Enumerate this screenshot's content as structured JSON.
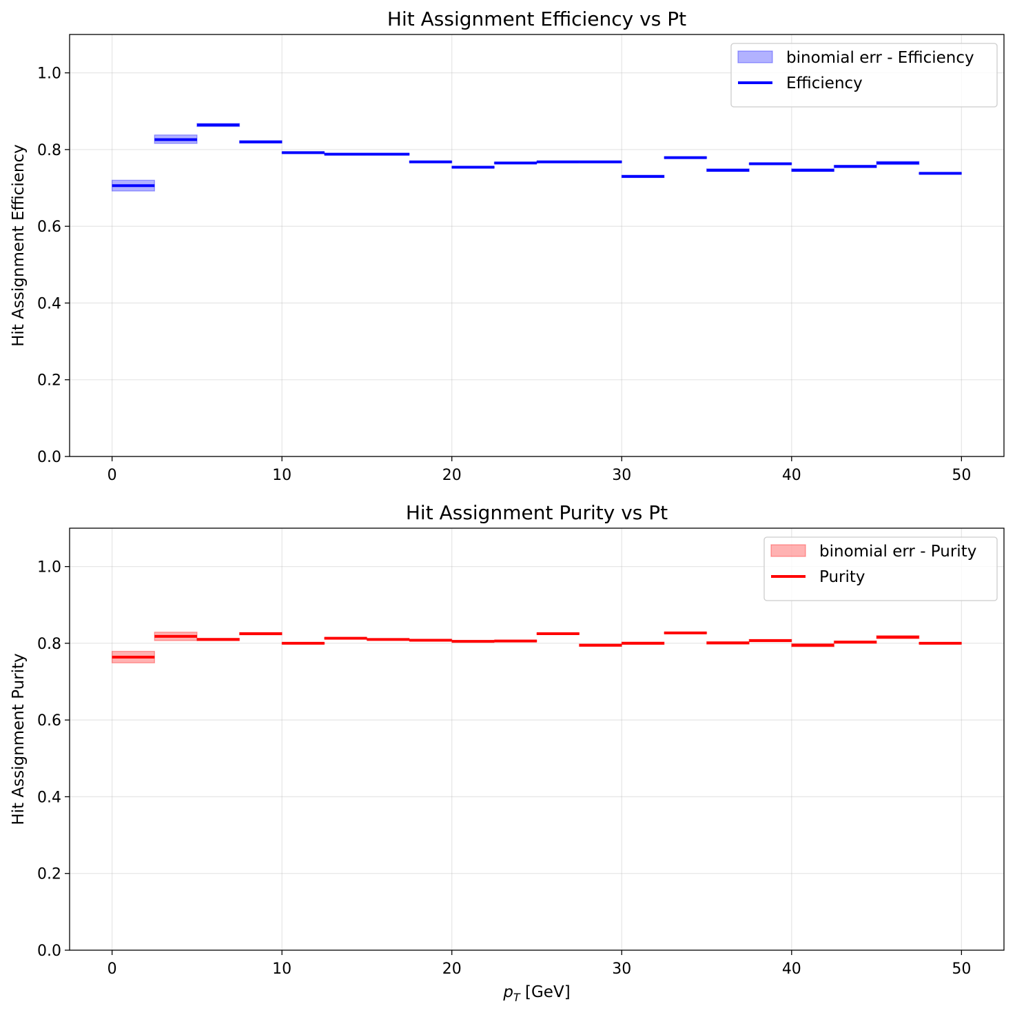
{
  "chart_data": [
    {
      "type": "step",
      "title": "Hit Assignment Efficiency vs Pt",
      "xlabel": "",
      "ylabel": "Hit Assignment Efficiency",
      "xlim": [
        -2.5,
        52.5
      ],
      "ylim": [
        0,
        1.1
      ],
      "xticks": [
        0,
        10,
        20,
        30,
        40,
        50
      ],
      "yticks": [
        0.0,
        0.2,
        0.4,
        0.6,
        0.8,
        1.0
      ],
      "grid": true,
      "legend_position": "top-right",
      "bin_edges": [
        0,
        2.5,
        5,
        7.5,
        10,
        12.5,
        15,
        17.5,
        20,
        22.5,
        25,
        27.5,
        30,
        32.5,
        35,
        37.5,
        40,
        42.5,
        45,
        47.5,
        50
      ],
      "series": [
        {
          "name": "Efficiency",
          "color": "#0000ff",
          "values": [
            0.706,
            0.826,
            0.864,
            0.82,
            0.792,
            0.788,
            0.788,
            0.768,
            0.754,
            0.765,
            0.768,
            0.768,
            0.73,
            0.779,
            0.746,
            0.763,
            0.746,
            0.756,
            0.765,
            0.738
          ],
          "err_low": [
            0.692,
            0.816,
            0.86,
            0.817,
            0.79,
            0.786,
            0.786,
            0.766,
            0.752,
            0.763,
            0.766,
            0.766,
            0.727,
            0.777,
            0.743,
            0.761,
            0.743,
            0.753,
            0.761,
            0.736
          ],
          "err_high": [
            0.72,
            0.838,
            0.868,
            0.823,
            0.794,
            0.79,
            0.79,
            0.77,
            0.756,
            0.767,
            0.77,
            0.77,
            0.733,
            0.781,
            0.75,
            0.765,
            0.75,
            0.759,
            0.769,
            0.74
          ]
        }
      ],
      "band_label": "binomial err - Efficiency",
      "band_color": "#0000ff"
    },
    {
      "type": "step",
      "title": "Hit Assignment Purity vs Pt",
      "xlabel": "p_T [GeV]",
      "ylabel": "Hit Assignment Purity",
      "xlim": [
        -2.5,
        52.5
      ],
      "ylim": [
        0,
        1.1
      ],
      "xticks": [
        0,
        10,
        20,
        30,
        40,
        50
      ],
      "yticks": [
        0.0,
        0.2,
        0.4,
        0.6,
        0.8,
        1.0
      ],
      "grid": true,
      "legend_position": "top-right",
      "bin_edges": [
        0,
        2.5,
        5,
        7.5,
        10,
        12.5,
        15,
        17.5,
        20,
        22.5,
        25,
        27.5,
        30,
        32.5,
        35,
        37.5,
        40,
        42.5,
        45,
        47.5,
        50
      ],
      "series": [
        {
          "name": "Purity",
          "color": "#ff0000",
          "values": [
            0.764,
            0.818,
            0.81,
            0.825,
            0.8,
            0.813,
            0.81,
            0.808,
            0.805,
            0.806,
            0.825,
            0.795,
            0.8,
            0.827,
            0.801,
            0.807,
            0.795,
            0.803,
            0.816,
            0.8
          ],
          "err_low": [
            0.749,
            0.807,
            0.807,
            0.822,
            0.798,
            0.811,
            0.808,
            0.806,
            0.803,
            0.804,
            0.823,
            0.792,
            0.797,
            0.825,
            0.798,
            0.804,
            0.791,
            0.8,
            0.812,
            0.798
          ],
          "err_high": [
            0.779,
            0.829,
            0.813,
            0.828,
            0.802,
            0.815,
            0.812,
            0.81,
            0.807,
            0.808,
            0.827,
            0.798,
            0.803,
            0.829,
            0.804,
            0.81,
            0.799,
            0.806,
            0.82,
            0.802
          ]
        }
      ],
      "band_label": "binomial err - Purity",
      "band_color": "#ff0000"
    }
  ]
}
